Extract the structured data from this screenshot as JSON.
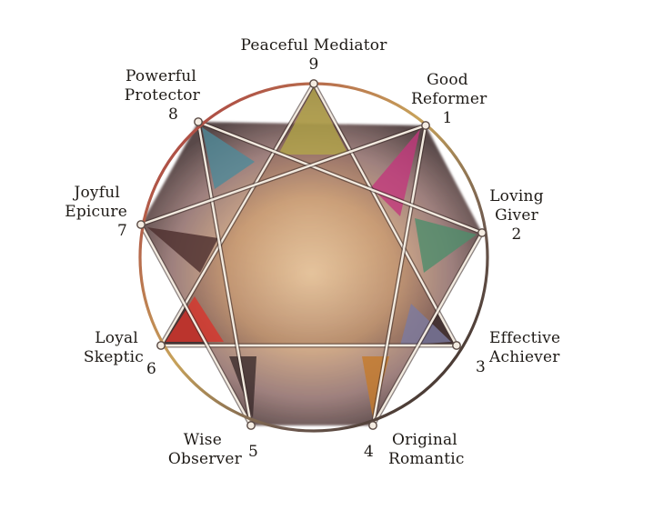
{
  "colors": {
    "background": "#ffffff",
    "circle_top": "#9a3b3f",
    "circle_right": "#c9a04a",
    "circle_bottom": "#3a2c2a",
    "center_glow": "#d9b68a",
    "line_color": "#f2eadf"
  },
  "types": [
    {
      "number": "9",
      "line1": "Peaceful Mediator",
      "line2": "",
      "color": "#b3a64a"
    },
    {
      "number": "1",
      "line1": "Good",
      "line2": "Reformer",
      "color": "#c2387c"
    },
    {
      "number": "2",
      "line1": "Loving",
      "line2": "Giver",
      "color": "#4f8d6c"
    },
    {
      "number": "3",
      "line1": "Effective",
      "line2": "Achiever",
      "color": "#7c7aa0"
    },
    {
      "number": "4",
      "line1": "Original",
      "line2": "Romantic",
      "color": "#c67a2a"
    },
    {
      "number": "5",
      "line1": "Wise",
      "line2": "Observer",
      "color": "#3b2c2c"
    },
    {
      "number": "6",
      "line1": "Loyal",
      "line2": "Skeptic",
      "color": "#d8342c"
    },
    {
      "number": "7",
      "line1": "Joyful",
      "line2": "Epicure",
      "color": "#4c2e2d"
    },
    {
      "number": "8",
      "line1": "Powerful",
      "line2": "Protector",
      "color": "#4f8a99"
    }
  ]
}
